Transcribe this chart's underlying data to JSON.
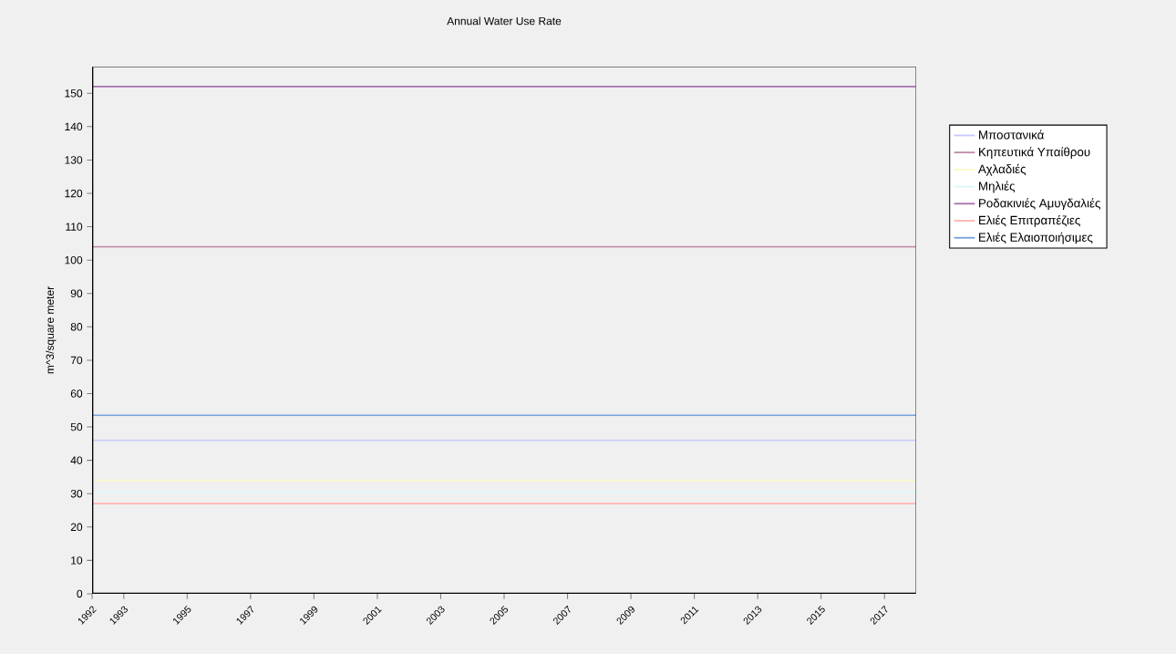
{
  "chart_data": {
    "type": "line",
    "title": "Annual Water Use Rate",
    "ylabel": "m^3/square meter",
    "x": [
      1992,
      2018
    ],
    "series": [
      {
        "name": "Μποστανικά",
        "color": "#c8c8ff",
        "values": [
          46,
          46
        ]
      },
      {
        "name": "Κηπευτικά Υπαίθρου",
        "color": "#c08aa8",
        "values": [
          104,
          104
        ]
      },
      {
        "name": "Αχλαδιές",
        "color": "#fafac8",
        "values": [
          34,
          34
        ]
      },
      {
        "name": "Μηλιές",
        "color": "#dcf8f8",
        "values": [
          30.5,
          30.5
        ]
      },
      {
        "name": "Ροδακινιές Αμυγδαλιές",
        "color": "#a874b0",
        "values": [
          152,
          152
        ]
      },
      {
        "name": "Ελιές Επιτραπέζιες",
        "color": "#ffb4b4",
        "values": [
          27,
          27
        ]
      },
      {
        "name": "Ελιές Ελαιοποιήσιμες",
        "color": "#78a4dc",
        "values": [
          53.5,
          53.5
        ]
      }
    ],
    "xlim": [
      1992,
      2018
    ],
    "xticks": [
      1992,
      1993,
      1995,
      1997,
      1999,
      2001,
      2003,
      2005,
      2007,
      2009,
      2011,
      2013,
      2015,
      2017
    ],
    "ylim": [
      0,
      158
    ],
    "yticks": [
      0,
      10,
      20,
      30,
      40,
      50,
      60,
      70,
      80,
      90,
      100,
      110,
      120,
      130,
      140,
      150
    ],
    "legend": "right",
    "grid": false,
    "line_style": "solid"
  }
}
